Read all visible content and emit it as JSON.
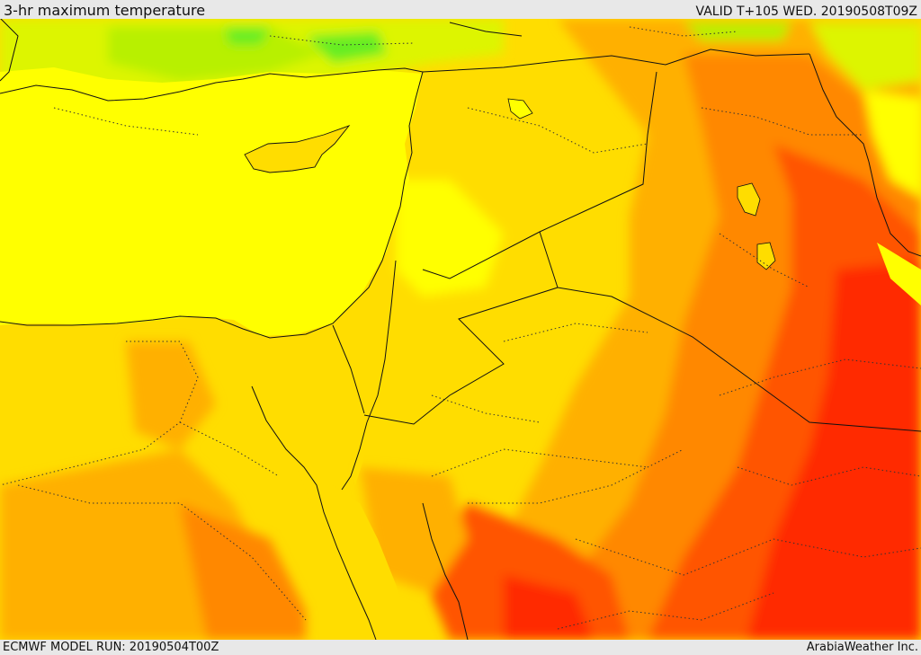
{
  "header": {
    "title": "3-hr maximum temperature",
    "valid_time": "VALID T+105 WED. 20190508T09Z"
  },
  "footer": {
    "model_run": "ECMWF MODEL RUN: 20190504T00Z",
    "credit": "ArabiaWeather Inc."
  },
  "map": {
    "field": "3-hr maximum temperature",
    "palette": [
      "#33dd55",
      "#66ee22",
      "#b8f000",
      "#ddf500",
      "#ffff00",
      "#ffdd00",
      "#ffb000",
      "#ff8800",
      "#ff5500",
      "#ff2a00"
    ],
    "border_color": "#111111",
    "province_color": "#333333"
  }
}
